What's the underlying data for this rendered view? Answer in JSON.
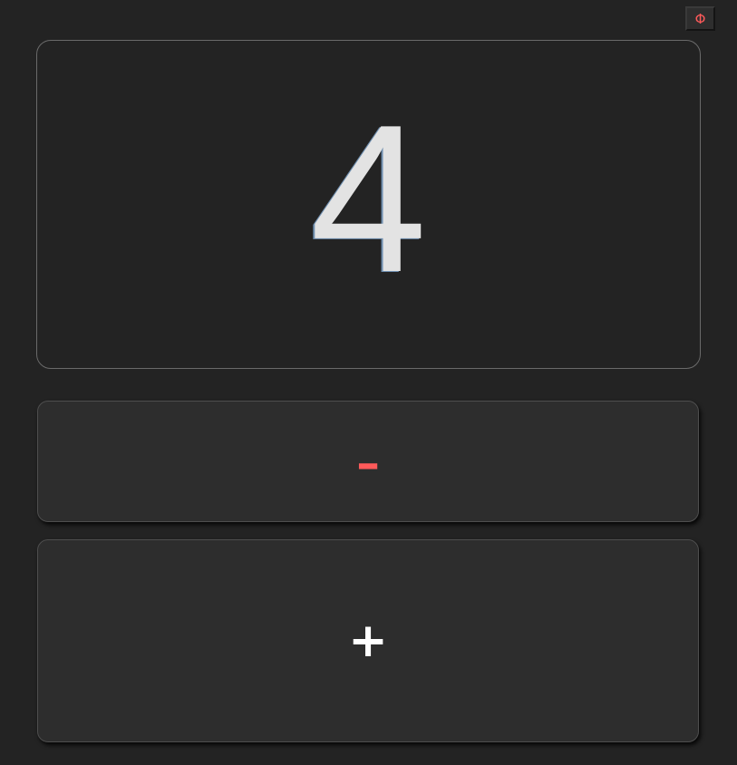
{
  "toolbar": {
    "power_label": "Φ"
  },
  "counter": {
    "value": "4"
  },
  "controls": {
    "decrement_label": "-",
    "increment_label": "+"
  },
  "colors": {
    "background": "#232323",
    "button_background": "#2d2d2d",
    "accent_red": "#ff5a5a",
    "counter_text": "#e3e3e3"
  }
}
